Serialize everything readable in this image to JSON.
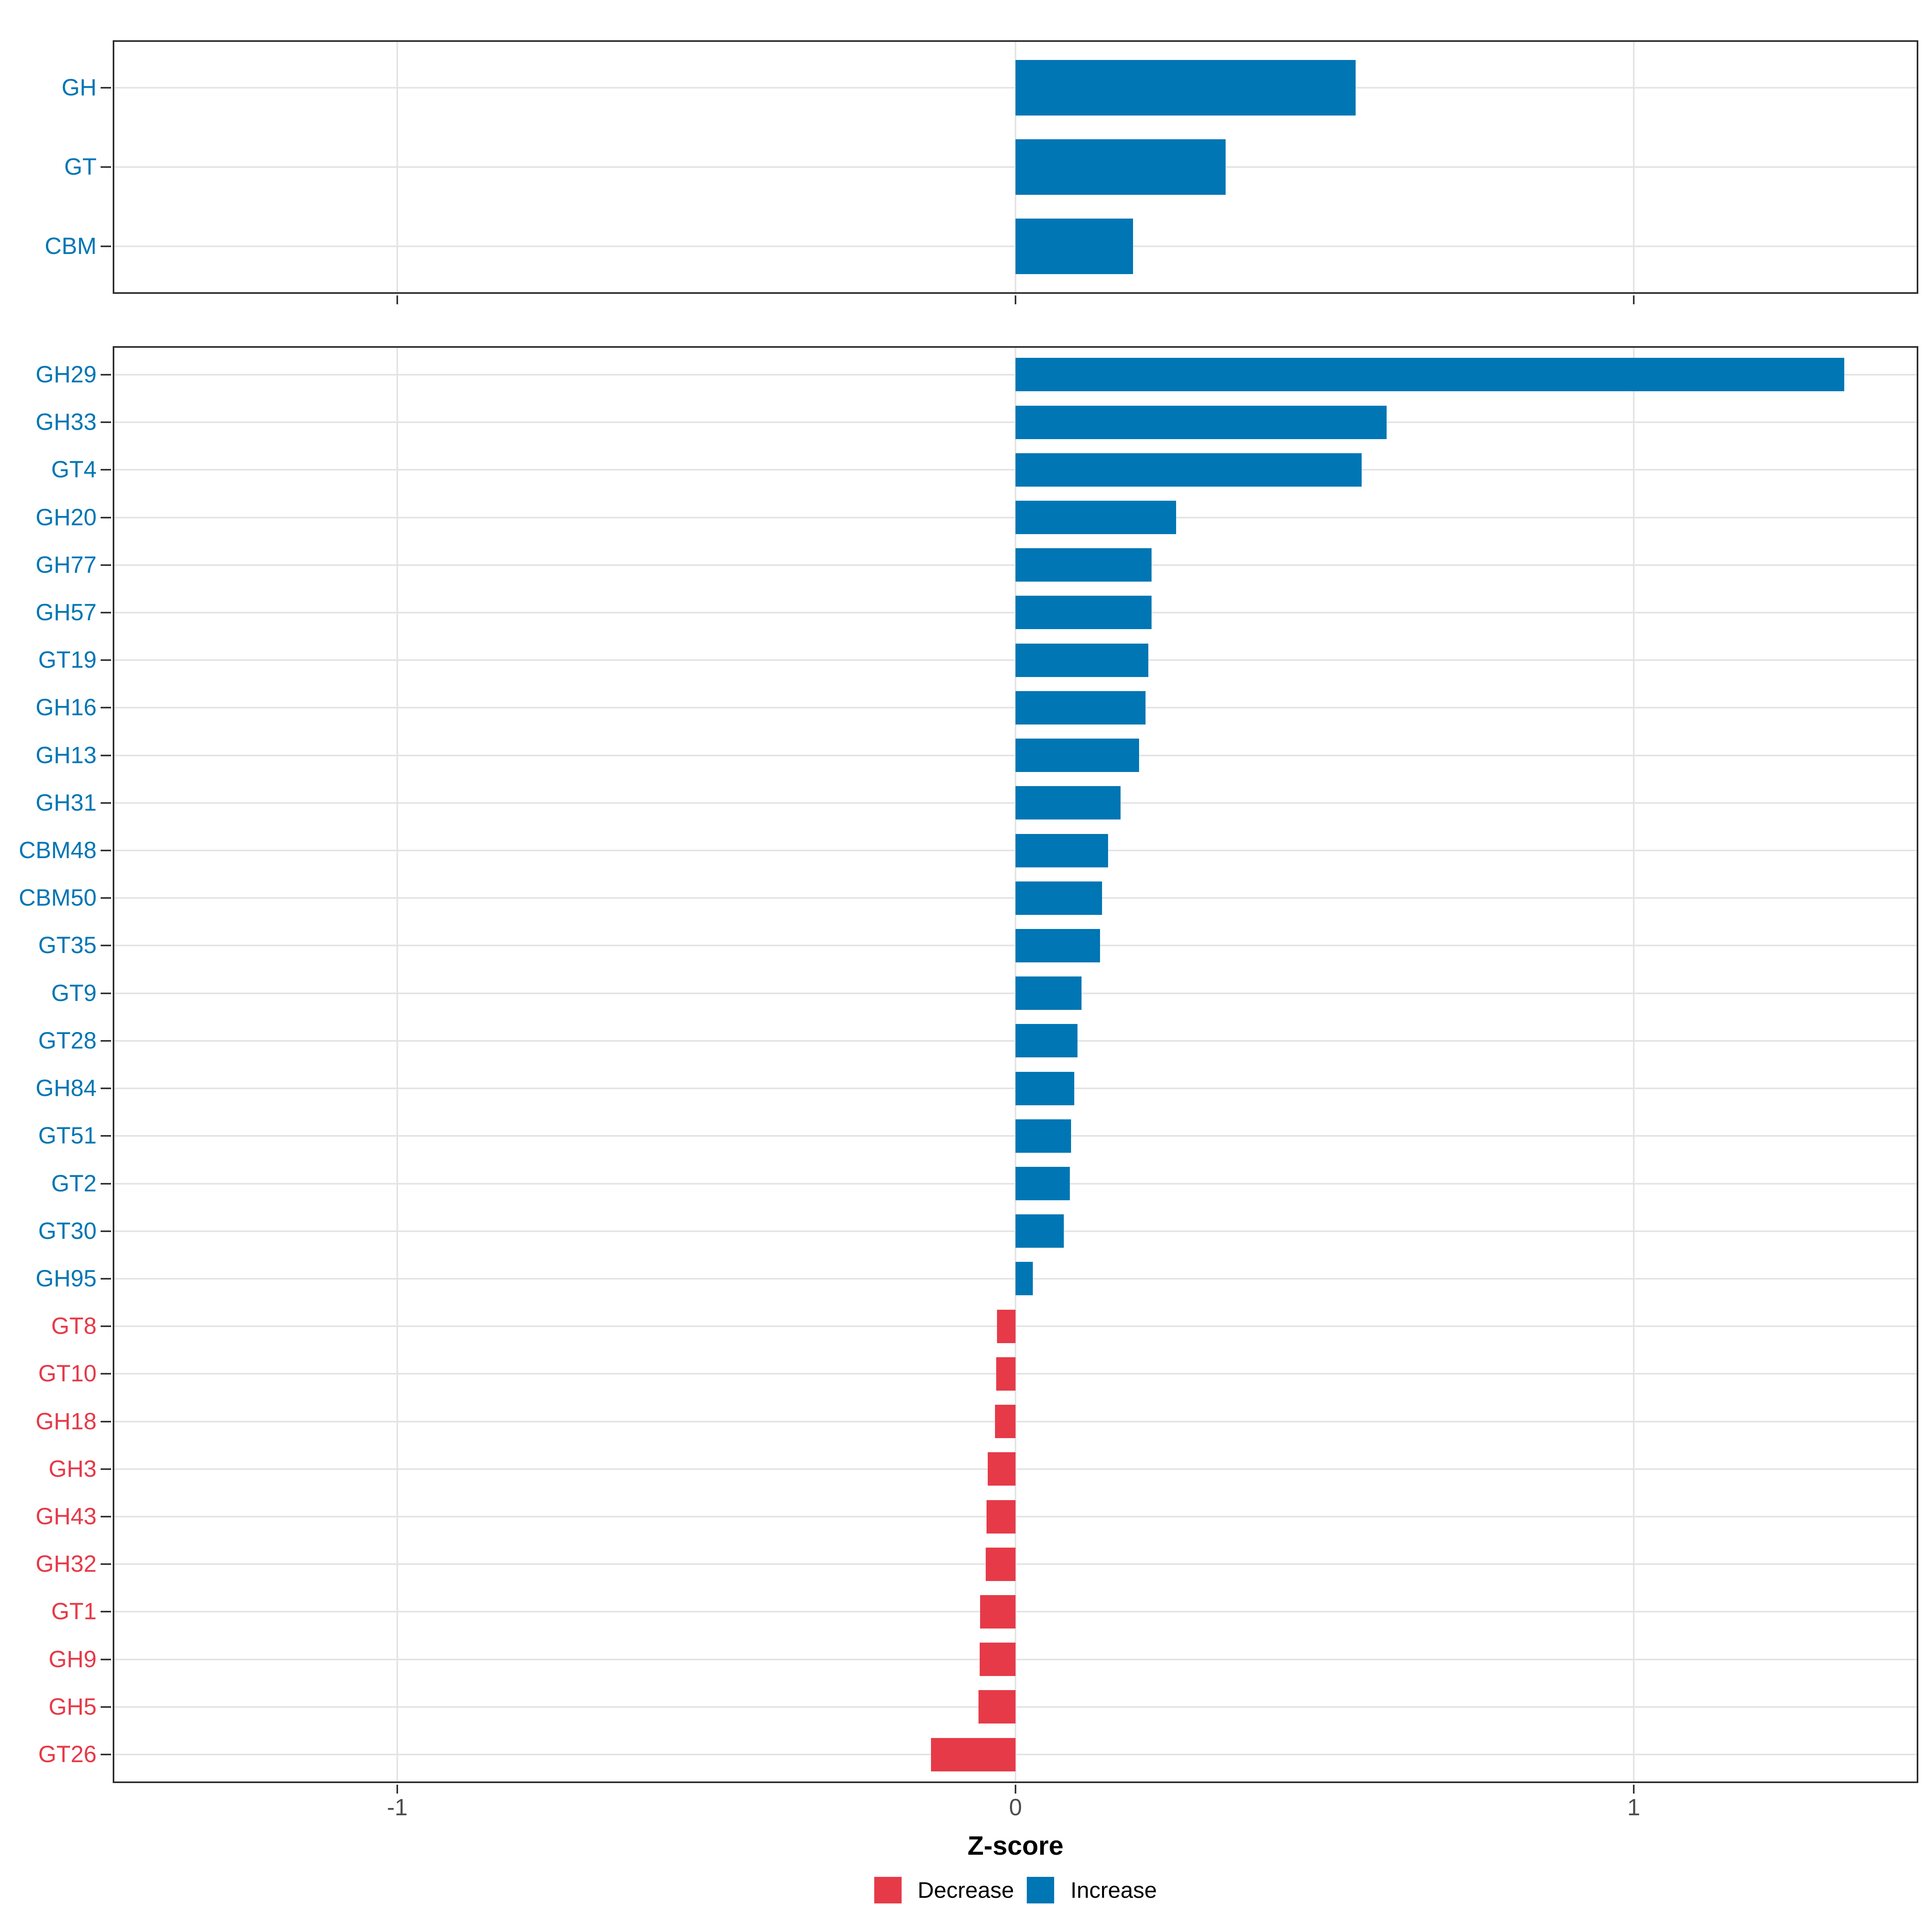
{
  "figure": {
    "x_axis": {
      "label": "Z-score",
      "ticks": [
        -1,
        0,
        1
      ],
      "tick_labels": [
        "-1",
        "0",
        "1"
      ],
      "min": -1.46,
      "max": 1.46
    },
    "legend": [
      {
        "label": "Decrease",
        "direction": "decrease"
      },
      {
        "label": "Increase",
        "direction": "increase"
      }
    ],
    "colors": {
      "increase": "#0076b4",
      "decrease": "#e63a48",
      "grid": "#e4e4e4",
      "panel_border": "#2b2b2b",
      "tick": "#333333",
      "tick_label_color": "#4d4d4d",
      "axis_title_color": "#000000"
    }
  },
  "chart_data": [
    {
      "type": "bar",
      "orientation": "horizontal",
      "panel": "cazyme-classes",
      "title": "",
      "xlabel": "Z-score",
      "ylabel": "",
      "xlim": [
        -1.46,
        1.46
      ],
      "grid": "major-only",
      "legend_position": "bottom",
      "categories": [
        "GH",
        "GT",
        "CBM"
      ],
      "values": [
        0.55,
        0.34,
        0.19
      ],
      "directions": [
        "increase",
        "increase",
        "increase"
      ]
    },
    {
      "type": "bar",
      "orientation": "horizontal",
      "panel": "cazyme-families",
      "title": "",
      "xlabel": "Z-score",
      "ylabel": "",
      "xlim": [
        -1.46,
        1.46
      ],
      "grid": "major-only",
      "legend_position": "bottom",
      "categories": [
        "GH29",
        "GH33",
        "GT4",
        "GH20",
        "GH77",
        "GH57",
        "GT19",
        "GH16",
        "GH13",
        "GH31",
        "CBM48",
        "CBM50",
        "GT35",
        "GT9",
        "GT28",
        "GH84",
        "GT51",
        "GT2",
        "GT30",
        "GH95",
        "GT8",
        "GT10",
        "GH18",
        "GH3",
        "GH43",
        "GH32",
        "GT1",
        "GH9",
        "GH5",
        "GT26"
      ],
      "values": [
        1.34,
        0.6,
        0.56,
        0.26,
        0.22,
        0.22,
        0.215,
        0.21,
        0.2,
        0.17,
        0.15,
        0.14,
        0.137,
        0.107,
        0.1,
        0.095,
        0.09,
        0.088,
        0.078,
        0.028,
        -0.03,
        -0.031,
        -0.033,
        -0.045,
        -0.047,
        -0.048,
        -0.057,
        -0.058,
        -0.06,
        -0.137
      ],
      "directions": [
        "increase",
        "increase",
        "increase",
        "increase",
        "increase",
        "increase",
        "increase",
        "increase",
        "increase",
        "increase",
        "increase",
        "increase",
        "increase",
        "increase",
        "increase",
        "increase",
        "increase",
        "increase",
        "increase",
        "increase",
        "decrease",
        "decrease",
        "decrease",
        "decrease",
        "decrease",
        "decrease",
        "decrease",
        "decrease",
        "decrease",
        "decrease"
      ]
    }
  ]
}
